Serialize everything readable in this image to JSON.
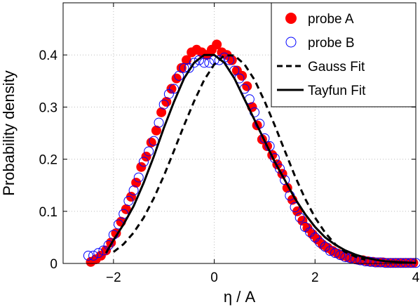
{
  "chart_data": {
    "type": "scatter",
    "title": "",
    "xlabel": "η / A",
    "ylabel": "Probability density",
    "xlim": [
      -3,
      4
    ],
    "ylim": [
      0,
      0.5
    ],
    "xticks": [
      -2,
      0,
      2,
      4
    ],
    "yticks": [
      0,
      0.1,
      0.2,
      0.3,
      0.4
    ],
    "grid": true,
    "legend_position": "top-right",
    "series": [
      {
        "name": "probe A",
        "style": "filled-circle",
        "color": "#ff0000",
        "points": [
          [
            -2.45,
            0.003
          ],
          [
            -2.35,
            0.008
          ],
          [
            -2.25,
            0.015
          ],
          [
            -2.15,
            0.025
          ],
          [
            -2.05,
            0.04
          ],
          [
            -1.95,
            0.058
          ],
          [
            -1.85,
            0.08
          ],
          [
            -1.75,
            0.104
          ],
          [
            -1.65,
            0.128
          ],
          [
            -1.55,
            0.155
          ],
          [
            -1.45,
            0.185
          ],
          [
            -1.35,
            0.205
          ],
          [
            -1.25,
            0.232
          ],
          [
            -1.15,
            0.255
          ],
          [
            -1.05,
            0.29
          ],
          [
            -0.95,
            0.31
          ],
          [
            -0.85,
            0.335
          ],
          [
            -0.75,
            0.355
          ],
          [
            -0.65,
            0.375
          ],
          [
            -0.55,
            0.39
          ],
          [
            -0.45,
            0.405
          ],
          [
            -0.35,
            0.41
          ],
          [
            -0.25,
            0.405
          ],
          [
            -0.15,
            0.4
          ],
          [
            -0.05,
            0.41
          ],
          [
            0.05,
            0.42
          ],
          [
            0.15,
            0.405
          ],
          [
            0.25,
            0.4
          ],
          [
            0.35,
            0.39
          ],
          [
            0.45,
            0.37
          ],
          [
            0.55,
            0.36
          ],
          [
            0.65,
            0.34
          ],
          [
            0.75,
            0.3
          ],
          [
            0.85,
            0.265
          ],
          [
            0.95,
            0.238
          ],
          [
            1.05,
            0.225
          ],
          [
            1.15,
            0.208
          ],
          [
            1.25,
            0.19
          ],
          [
            1.35,
            0.172
          ],
          [
            1.45,
            0.145
          ],
          [
            1.55,
            0.122
          ],
          [
            1.65,
            0.1
          ],
          [
            1.75,
            0.082
          ],
          [
            1.85,
            0.068
          ],
          [
            1.95,
            0.056
          ],
          [
            2.05,
            0.046
          ],
          [
            2.15,
            0.036
          ],
          [
            2.25,
            0.03
          ],
          [
            2.35,
            0.024
          ],
          [
            2.45,
            0.019
          ],
          [
            2.55,
            0.015
          ],
          [
            2.65,
            0.012
          ],
          [
            2.75,
            0.009
          ],
          [
            2.85,
            0.007
          ],
          [
            2.95,
            0.006
          ],
          [
            3.05,
            0.004
          ],
          [
            3.15,
            0.003
          ],
          [
            3.25,
            0.002
          ],
          [
            3.35,
            0.002
          ],
          [
            3.45,
            0.001
          ],
          [
            3.55,
            0.001
          ],
          [
            3.65,
            0.001
          ],
          [
            3.75,
            0.001
          ],
          [
            3.85,
            0.001
          ],
          [
            3.95,
            0.001
          ]
        ]
      },
      {
        "name": "probe B",
        "style": "open-circle",
        "color": "#0000ff",
        "points": [
          [
            -2.5,
            0.015
          ],
          [
            -2.4,
            0.015
          ],
          [
            -2.3,
            0.02
          ],
          [
            -2.2,
            0.025
          ],
          [
            -2.1,
            0.035
          ],
          [
            -2.0,
            0.055
          ],
          [
            -1.9,
            0.075
          ],
          [
            -1.8,
            0.095
          ],
          [
            -1.7,
            0.12
          ],
          [
            -1.6,
            0.14
          ],
          [
            -1.5,
            0.165
          ],
          [
            -1.4,
            0.195
          ],
          [
            -1.3,
            0.215
          ],
          [
            -1.2,
            0.235
          ],
          [
            -1.1,
            0.27
          ],
          [
            -1.0,
            0.305
          ],
          [
            -0.9,
            0.325
          ],
          [
            -0.8,
            0.335
          ],
          [
            -0.7,
            0.36
          ],
          [
            -0.6,
            0.375
          ],
          [
            -0.5,
            0.375
          ],
          [
            -0.4,
            0.385
          ],
          [
            -0.3,
            0.39
          ],
          [
            -0.2,
            0.385
          ],
          [
            -0.1,
            0.385
          ],
          [
            0.0,
            0.39
          ],
          [
            0.1,
            0.39
          ],
          [
            0.2,
            0.395
          ],
          [
            0.3,
            0.39
          ],
          [
            0.4,
            0.37
          ],
          [
            0.5,
            0.355
          ],
          [
            0.6,
            0.335
          ],
          [
            0.7,
            0.315
          ],
          [
            0.8,
            0.29
          ],
          [
            0.9,
            0.268
          ],
          [
            1.0,
            0.24
          ],
          [
            1.1,
            0.225
          ],
          [
            1.2,
            0.202
          ],
          [
            1.3,
            0.182
          ],
          [
            1.4,
            0.16
          ],
          [
            1.5,
            0.13
          ],
          [
            1.6,
            0.108
          ],
          [
            1.7,
            0.088
          ],
          [
            1.8,
            0.07
          ],
          [
            1.9,
            0.06
          ],
          [
            2.0,
            0.05
          ],
          [
            2.1,
            0.04
          ],
          [
            2.2,
            0.032
          ],
          [
            2.3,
            0.024
          ],
          [
            2.4,
            0.02
          ],
          [
            2.5,
            0.016
          ],
          [
            2.6,
            0.012
          ],
          [
            2.7,
            0.01
          ],
          [
            2.8,
            0.008
          ],
          [
            2.9,
            0.006
          ],
          [
            3.0,
            0.004
          ],
          [
            3.1,
            0.003
          ],
          [
            3.2,
            0.002
          ],
          [
            3.3,
            0.002
          ],
          [
            3.4,
            0.001
          ],
          [
            3.5,
            0.001
          ],
          [
            3.6,
            0.001
          ],
          [
            3.7,
            0.001
          ],
          [
            3.8,
            0.001
          ],
          [
            3.9,
            0.001
          ],
          [
            4.0,
            0.001
          ]
        ]
      },
      {
        "name": "Gauss Fit",
        "style": "dashed-line",
        "color": "#000000",
        "x": [
          -2.0,
          -1.8,
          -1.6,
          -1.4,
          -1.2,
          -1.0,
          -0.8,
          -0.6,
          -0.4,
          -0.2,
          0.0,
          0.2,
          0.4,
          0.6,
          0.8,
          1.0,
          1.2,
          1.4,
          1.6,
          1.8,
          2.0,
          2.2,
          2.4,
          2.6,
          2.8,
          3.0
        ],
        "y": [
          0.022,
          0.037,
          0.059,
          0.088,
          0.125,
          0.168,
          0.216,
          0.265,
          0.311,
          0.352,
          0.382,
          0.399,
          0.399,
          0.382,
          0.352,
          0.311,
          0.265,
          0.216,
          0.168,
          0.125,
          0.088,
          0.059,
          0.037,
          0.022,
          0.013,
          0.007
        ]
      },
      {
        "name": "Tayfun Fit",
        "style": "solid-line",
        "color": "#000000",
        "x": [
          -2.15,
          -2.0,
          -1.8,
          -1.6,
          -1.4,
          -1.2,
          -1.0,
          -0.8,
          -0.6,
          -0.4,
          -0.2,
          0.0,
          0.2,
          0.4,
          0.6,
          0.8,
          1.0,
          1.2,
          1.4,
          1.6,
          1.8,
          2.0,
          2.2,
          2.4,
          2.6,
          2.8,
          3.0,
          3.2,
          3.4,
          3.6,
          3.8,
          4.0
        ],
        "y": [
          0.02,
          0.045,
          0.075,
          0.11,
          0.155,
          0.205,
          0.26,
          0.31,
          0.355,
          0.385,
          0.4,
          0.4,
          0.385,
          0.355,
          0.315,
          0.275,
          0.235,
          0.195,
          0.16,
          0.125,
          0.095,
          0.07,
          0.05,
          0.036,
          0.025,
          0.017,
          0.011,
          0.007,
          0.004,
          0.003,
          0.002,
          0.001
        ]
      }
    ]
  }
}
